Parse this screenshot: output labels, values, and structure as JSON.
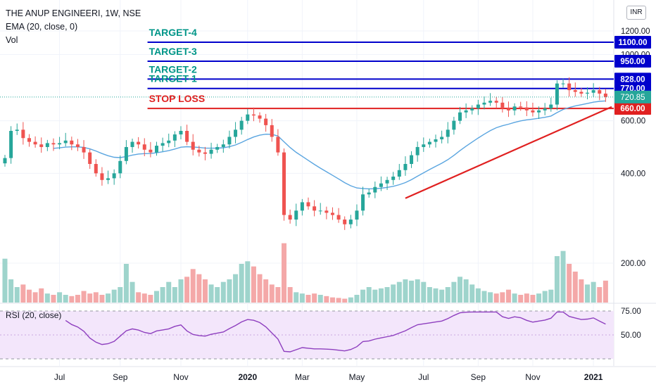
{
  "legend": {
    "symbol": "THE ANUP ENGINEERI, 1W, NSE",
    "ema": "EMA (20, close, 0)",
    "vol": "Vol"
  },
  "rsi": {
    "label": "RSI (20, close)"
  },
  "currency": "INR",
  "colors": {
    "up": "#26a69a",
    "down": "#ef5350",
    "up_vol": "#9ed4cc",
    "down_vol": "#f4a8a8",
    "ema": "#5aa5e0",
    "target": "#0000cc",
    "target_text": "#009688",
    "stop": "#e02020",
    "trend": "#e02020",
    "rsi": "#8e3fbf",
    "rsi_band": "#f3e6fb",
    "grid": "#f0f3fa"
  },
  "chart_data": {
    "type": "candlestick",
    "price_axis": {
      "ticks": [
        {
          "value": 200,
          "label": "200.00"
        },
        {
          "value": 400,
          "label": "400.00"
        },
        {
          "value": 600,
          "label": "600.00"
        },
        {
          "value": 1000,
          "label": "1000.00"
        },
        {
          "value": 1200,
          "label": "1200.00"
        }
      ]
    },
    "x_axis": {
      "labels": [
        {
          "label": "Jul",
          "week": 9,
          "bold": false
        },
        {
          "label": "Sep",
          "week": 19,
          "bold": false
        },
        {
          "label": "Nov",
          "week": 29,
          "bold": false
        },
        {
          "label": "2020",
          "week": 40,
          "bold": true
        },
        {
          "label": "Mar",
          "week": 49,
          "bold": false
        },
        {
          "label": "May",
          "week": 58,
          "bold": false
        },
        {
          "label": "Jul",
          "week": 69,
          "bold": false
        },
        {
          "label": "Sep",
          "week": 78,
          "bold": false
        },
        {
          "label": "Nov",
          "week": 87,
          "bold": false
        },
        {
          "label": "2021",
          "week": 97,
          "bold": true
        }
      ]
    },
    "levels": [
      {
        "name": "TARGET-4",
        "value": 1100,
        "label": "1100.00",
        "kind": "target"
      },
      {
        "name": "TARGET-3",
        "value": 950,
        "label": "950.00",
        "kind": "target"
      },
      {
        "name": "TARGET-2",
        "value": 828,
        "label": "828.00",
        "kind": "target"
      },
      {
        "name": "TARGET-1",
        "value": 770,
        "label": "770.00",
        "kind": "target"
      },
      {
        "name": "STOP LOSS",
        "value": 660,
        "label": "660.00",
        "kind": "stop"
      }
    ],
    "current_price": {
      "value": 720.85,
      "label": "720.85"
    },
    "trendline": {
      "from": {
        "week": 66,
        "price": 330
      },
      "to": {
        "week": 100,
        "price": 668
      }
    },
    "closes": [
      450,
      555,
      560,
      525,
      510,
      500,
      490,
      505,
      500,
      505,
      515,
      500,
      490,
      470,
      430,
      400,
      380,
      385,
      400,
      440,
      490,
      510,
      500,
      480,
      470,
      495,
      505,
      515,
      540,
      555,
      510,
      480,
      470,
      465,
      480,
      490,
      500,
      530,
      560,
      600,
      630,
      625,
      610,
      580,
      530,
      470,
      290,
      280,
      300,
      320,
      310,
      300,
      300,
      295,
      290,
      280,
      270,
      280,
      300,
      340,
      345,
      360,
      370,
      380,
      390,
      410,
      430,
      460,
      490,
      500,
      510,
      520,
      530,
      560,
      600,
      640,
      650,
      660,
      680,
      690,
      700,
      690,
      660,
      650,
      670,
      665,
      650,
      640,
      650,
      660,
      680,
      800,
      800,
      760,
      750,
      740,
      745,
      760,
      740,
      720.85
    ],
    "volume_scale": {
      "max": 300
    },
    "rsi_axis": {
      "ticks": [
        {
          "value": 75,
          "label": "75.00"
        },
        {
          "value": 50,
          "label": "50.00"
        }
      ]
    }
  }
}
